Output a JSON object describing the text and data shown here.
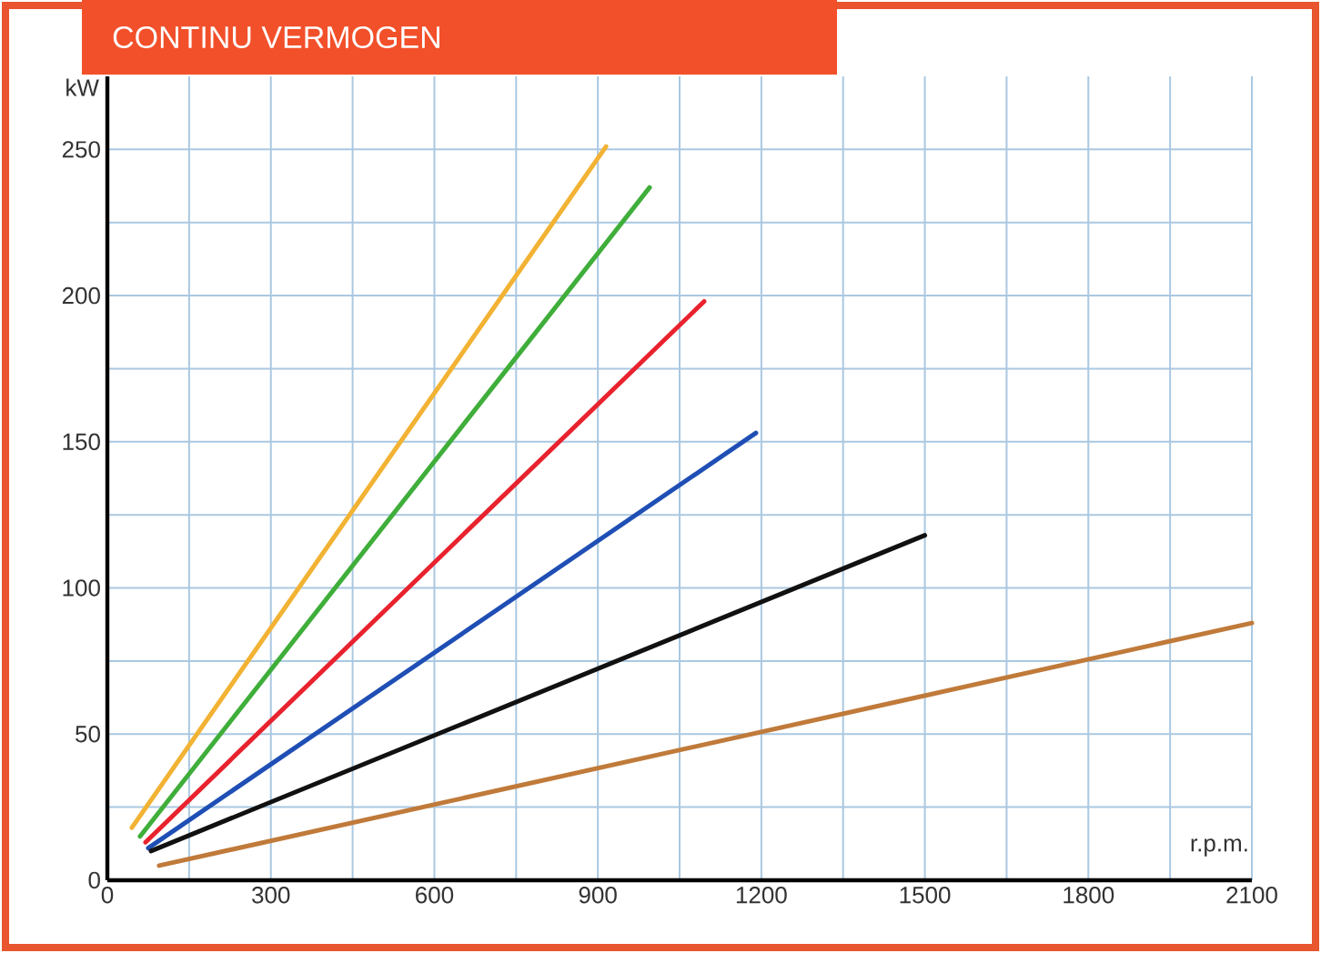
{
  "chart_data": {
    "type": "line",
    "title": "CONTINU VERMOGEN",
    "xlabel": "r.p.m.",
    "ylabel": "kW",
    "xlim": [
      0,
      2100
    ],
    "ylim": [
      0,
      275
    ],
    "xticks": [
      0,
      300,
      600,
      900,
      1200,
      1500,
      1800,
      2100
    ],
    "yticks": [
      0,
      50,
      100,
      150,
      200,
      250
    ],
    "grid": true,
    "marker": "none",
    "line_style": "solid",
    "series": [
      {
        "color": "#f2b233",
        "x": [
          45,
          915
        ],
        "values": [
          18,
          251
        ]
      },
      {
        "color": "#3fae3a",
        "x": [
          60,
          995
        ],
        "values": [
          15,
          237
        ]
      },
      {
        "color": "#e8232e",
        "x": [
          70,
          1095
        ],
        "values": [
          13,
          198
        ]
      },
      {
        "color": "#1f4fb5",
        "x": [
          75,
          1190
        ],
        "values": [
          11,
          153
        ]
      },
      {
        "color": "#111111",
        "x": [
          80,
          1500
        ],
        "values": [
          10,
          118
        ]
      },
      {
        "color": "#c07a3a",
        "x": [
          95,
          2100
        ],
        "values": [
          5,
          88
        ]
      }
    ]
  }
}
